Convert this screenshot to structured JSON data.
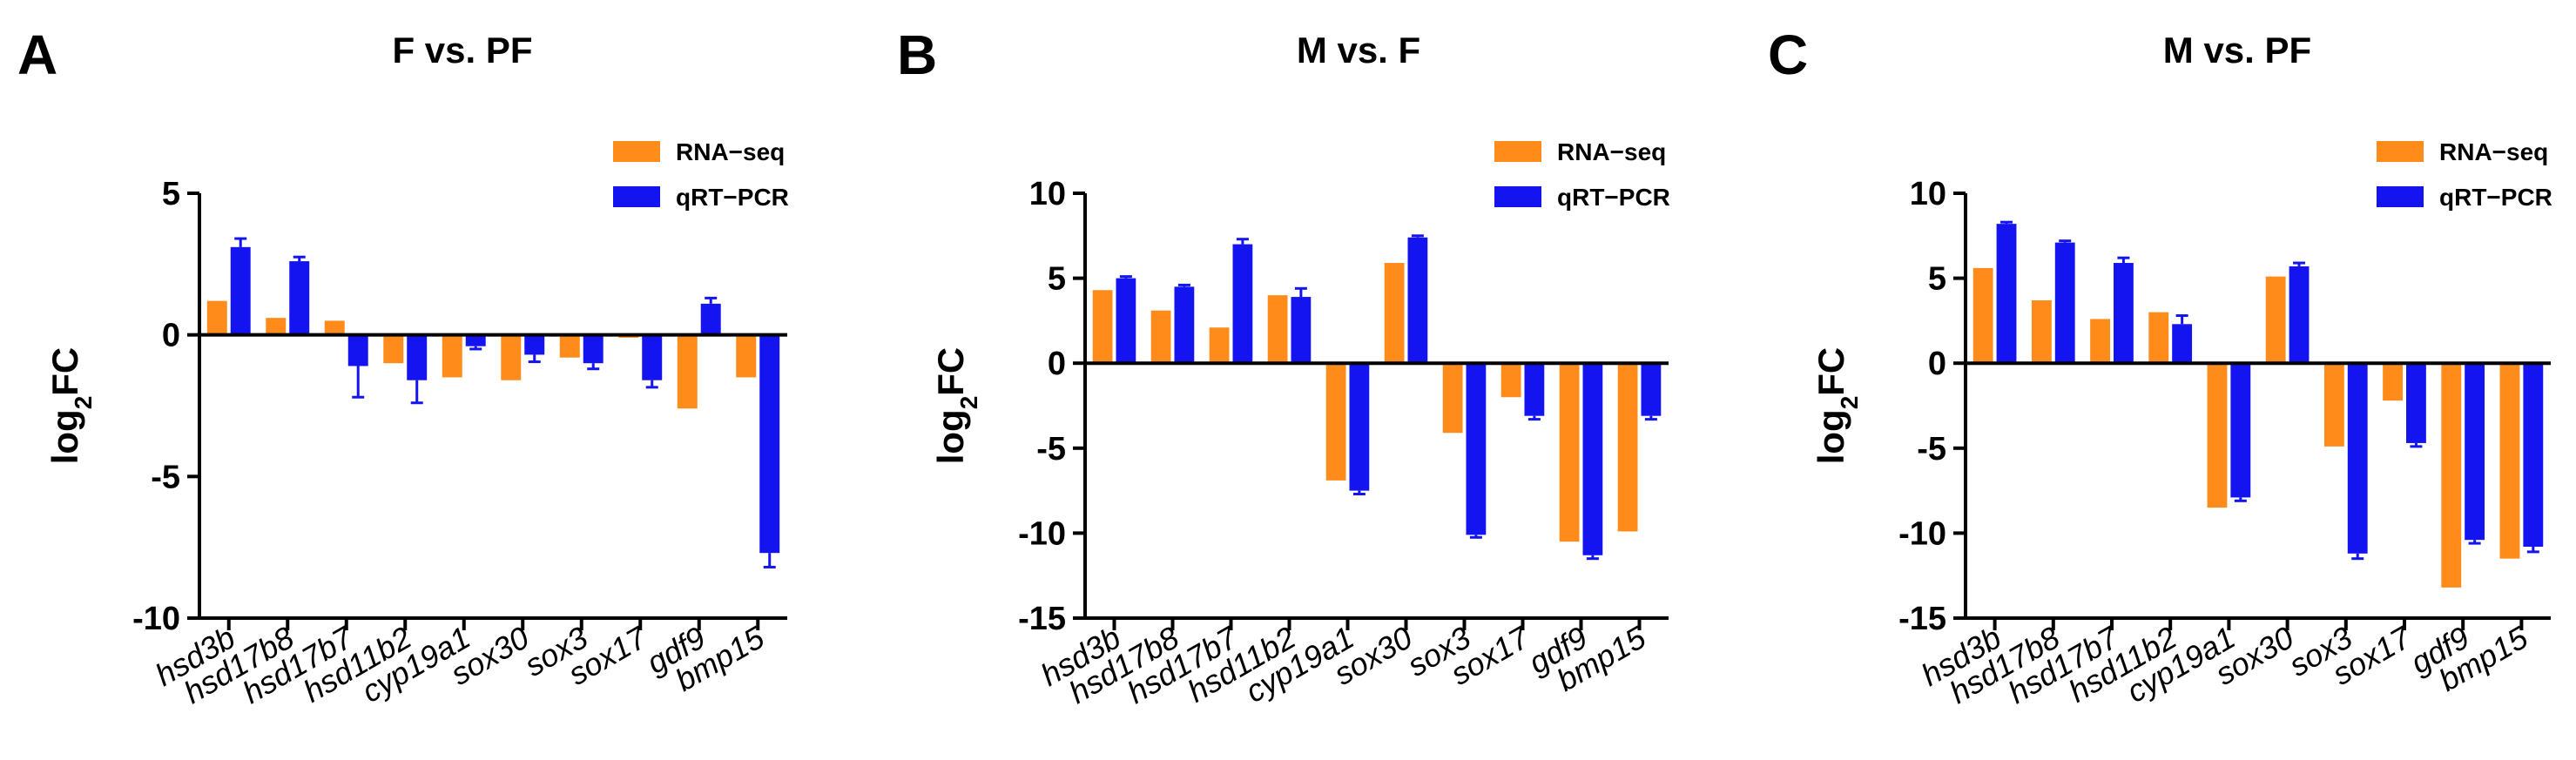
{
  "colors": {
    "rna_seq": "#FF8C1A",
    "qrt_pcr": "#1414F0",
    "axis": "#000000"
  },
  "chart_data": [
    {
      "type": "bar",
      "panel": "A",
      "title": "F vs. PF",
      "xlabel": "",
      "ylabel": "log2FC",
      "ylim": [
        -10,
        5
      ],
      "yticks": [
        5,
        0,
        -5,
        -10
      ],
      "categories": [
        "hsd3b",
        "hsd17b8",
        "hsd17b7",
        "hsd11b2",
        "cyp19a1",
        "sox30",
        "sox3",
        "sox17",
        "gdf9",
        "bmp15"
      ],
      "series": [
        {
          "name": "RNA−seq",
          "values": [
            1.2,
            0.6,
            0.5,
            -1.0,
            -1.5,
            -1.6,
            -0.8,
            -0.1,
            -2.6,
            -1.5
          ]
        },
        {
          "name": "qRT−PCR",
          "values": [
            3.1,
            2.6,
            -1.1,
            -1.6,
            -0.4,
            -0.7,
            -1.0,
            -1.6,
            1.1,
            -7.7
          ],
          "errors": [
            0.3,
            0.15,
            1.1,
            0.8,
            0.1,
            0.25,
            0.2,
            0.25,
            0.2,
            0.5
          ]
        }
      ],
      "legend": "top-right"
    },
    {
      "type": "bar",
      "panel": "B",
      "title": "M vs. F",
      "xlabel": "",
      "ylabel": "log2FC",
      "ylim": [
        -15,
        10
      ],
      "yticks": [
        10,
        5,
        0,
        -5,
        -10,
        -15
      ],
      "categories": [
        "hsd3b",
        "hsd17b8",
        "hsd17b7",
        "hsd11b2",
        "cyp19a1",
        "sox30",
        "sox3",
        "sox17",
        "gdf9",
        "bmp15"
      ],
      "series": [
        {
          "name": "RNA−seq",
          "values": [
            4.3,
            3.1,
            2.1,
            4.0,
            -6.9,
            5.9,
            -4.1,
            -2.0,
            -10.5,
            -9.9
          ]
        },
        {
          "name": "qRT−PCR",
          "values": [
            5.0,
            4.5,
            7.0,
            3.9,
            -7.5,
            7.4,
            -10.1,
            -3.1,
            -11.3,
            -3.1
          ],
          "errors": [
            0.1,
            0.1,
            0.3,
            0.5,
            0.2,
            0.1,
            0.15,
            0.2,
            0.2,
            0.2
          ]
        }
      ],
      "legend": "top-right"
    },
    {
      "type": "bar",
      "panel": "C",
      "title": "M vs. PF",
      "xlabel": "",
      "ylabel": "log2FC",
      "ylim": [
        -15,
        10
      ],
      "yticks": [
        10,
        5,
        0,
        -5,
        -10,
        -15
      ],
      "categories": [
        "hsd3b",
        "hsd17b8",
        "hsd17b7",
        "hsd11b2",
        "cyp19a1",
        "sox30",
        "sox3",
        "sox17",
        "gdf9",
        "bmp15"
      ],
      "series": [
        {
          "name": "RNA−seq",
          "values": [
            5.6,
            3.7,
            2.6,
            3.0,
            -8.5,
            5.1,
            -4.9,
            -2.2,
            -13.2,
            -11.5
          ]
        },
        {
          "name": "qRT−PCR",
          "values": [
            8.2,
            7.1,
            5.9,
            2.3,
            -7.9,
            5.7,
            -11.2,
            -4.7,
            -10.4,
            -10.8
          ],
          "errors": [
            0.1,
            0.1,
            0.3,
            0.5,
            0.2,
            0.2,
            0.3,
            0.2,
            0.2,
            0.3
          ]
        }
      ],
      "legend": "top-right"
    }
  ]
}
